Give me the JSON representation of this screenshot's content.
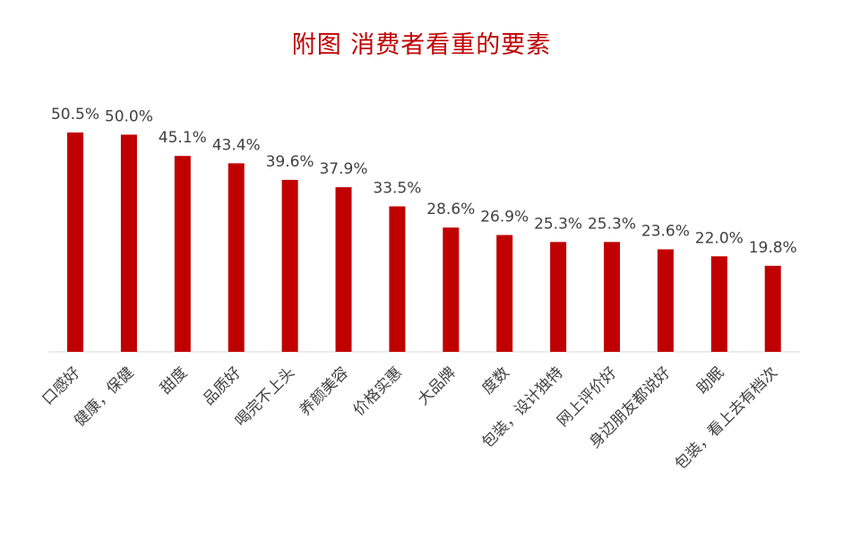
{
  "chart_data": {
    "type": "bar",
    "title": "附图  消费者看重的要素",
    "xlabel": "",
    "ylabel": "",
    "ylim": [
      0,
      60
    ],
    "grid": false,
    "legend": "none",
    "categories": [
      "口感好",
      "健康，保健",
      "甜度",
      "品质好",
      "喝完不上头",
      "养颜美容",
      "价格实惠",
      "大品牌",
      "度数",
      "包装，设计独特",
      "网上评价好",
      "身边朋友都说好",
      "助眠",
      "包装，看上去有档次"
    ],
    "values": [
      50.5,
      50.0,
      45.1,
      43.4,
      39.6,
      37.9,
      33.5,
      28.6,
      26.9,
      25.3,
      25.3,
      23.6,
      22.0,
      19.8
    ],
    "value_labels": [
      "50.5%",
      "50.0%",
      "45.1%",
      "43.4%",
      "39.6%",
      "37.9%",
      "33.5%",
      "28.6%",
      "26.9%",
      "25.3%",
      "25.3%",
      "23.6%",
      "22.0%",
      "19.8%"
    ],
    "colors": {
      "bar": "#c00000",
      "title": "#c00000",
      "text": "#404040",
      "axis": "#d9d9d9"
    }
  }
}
